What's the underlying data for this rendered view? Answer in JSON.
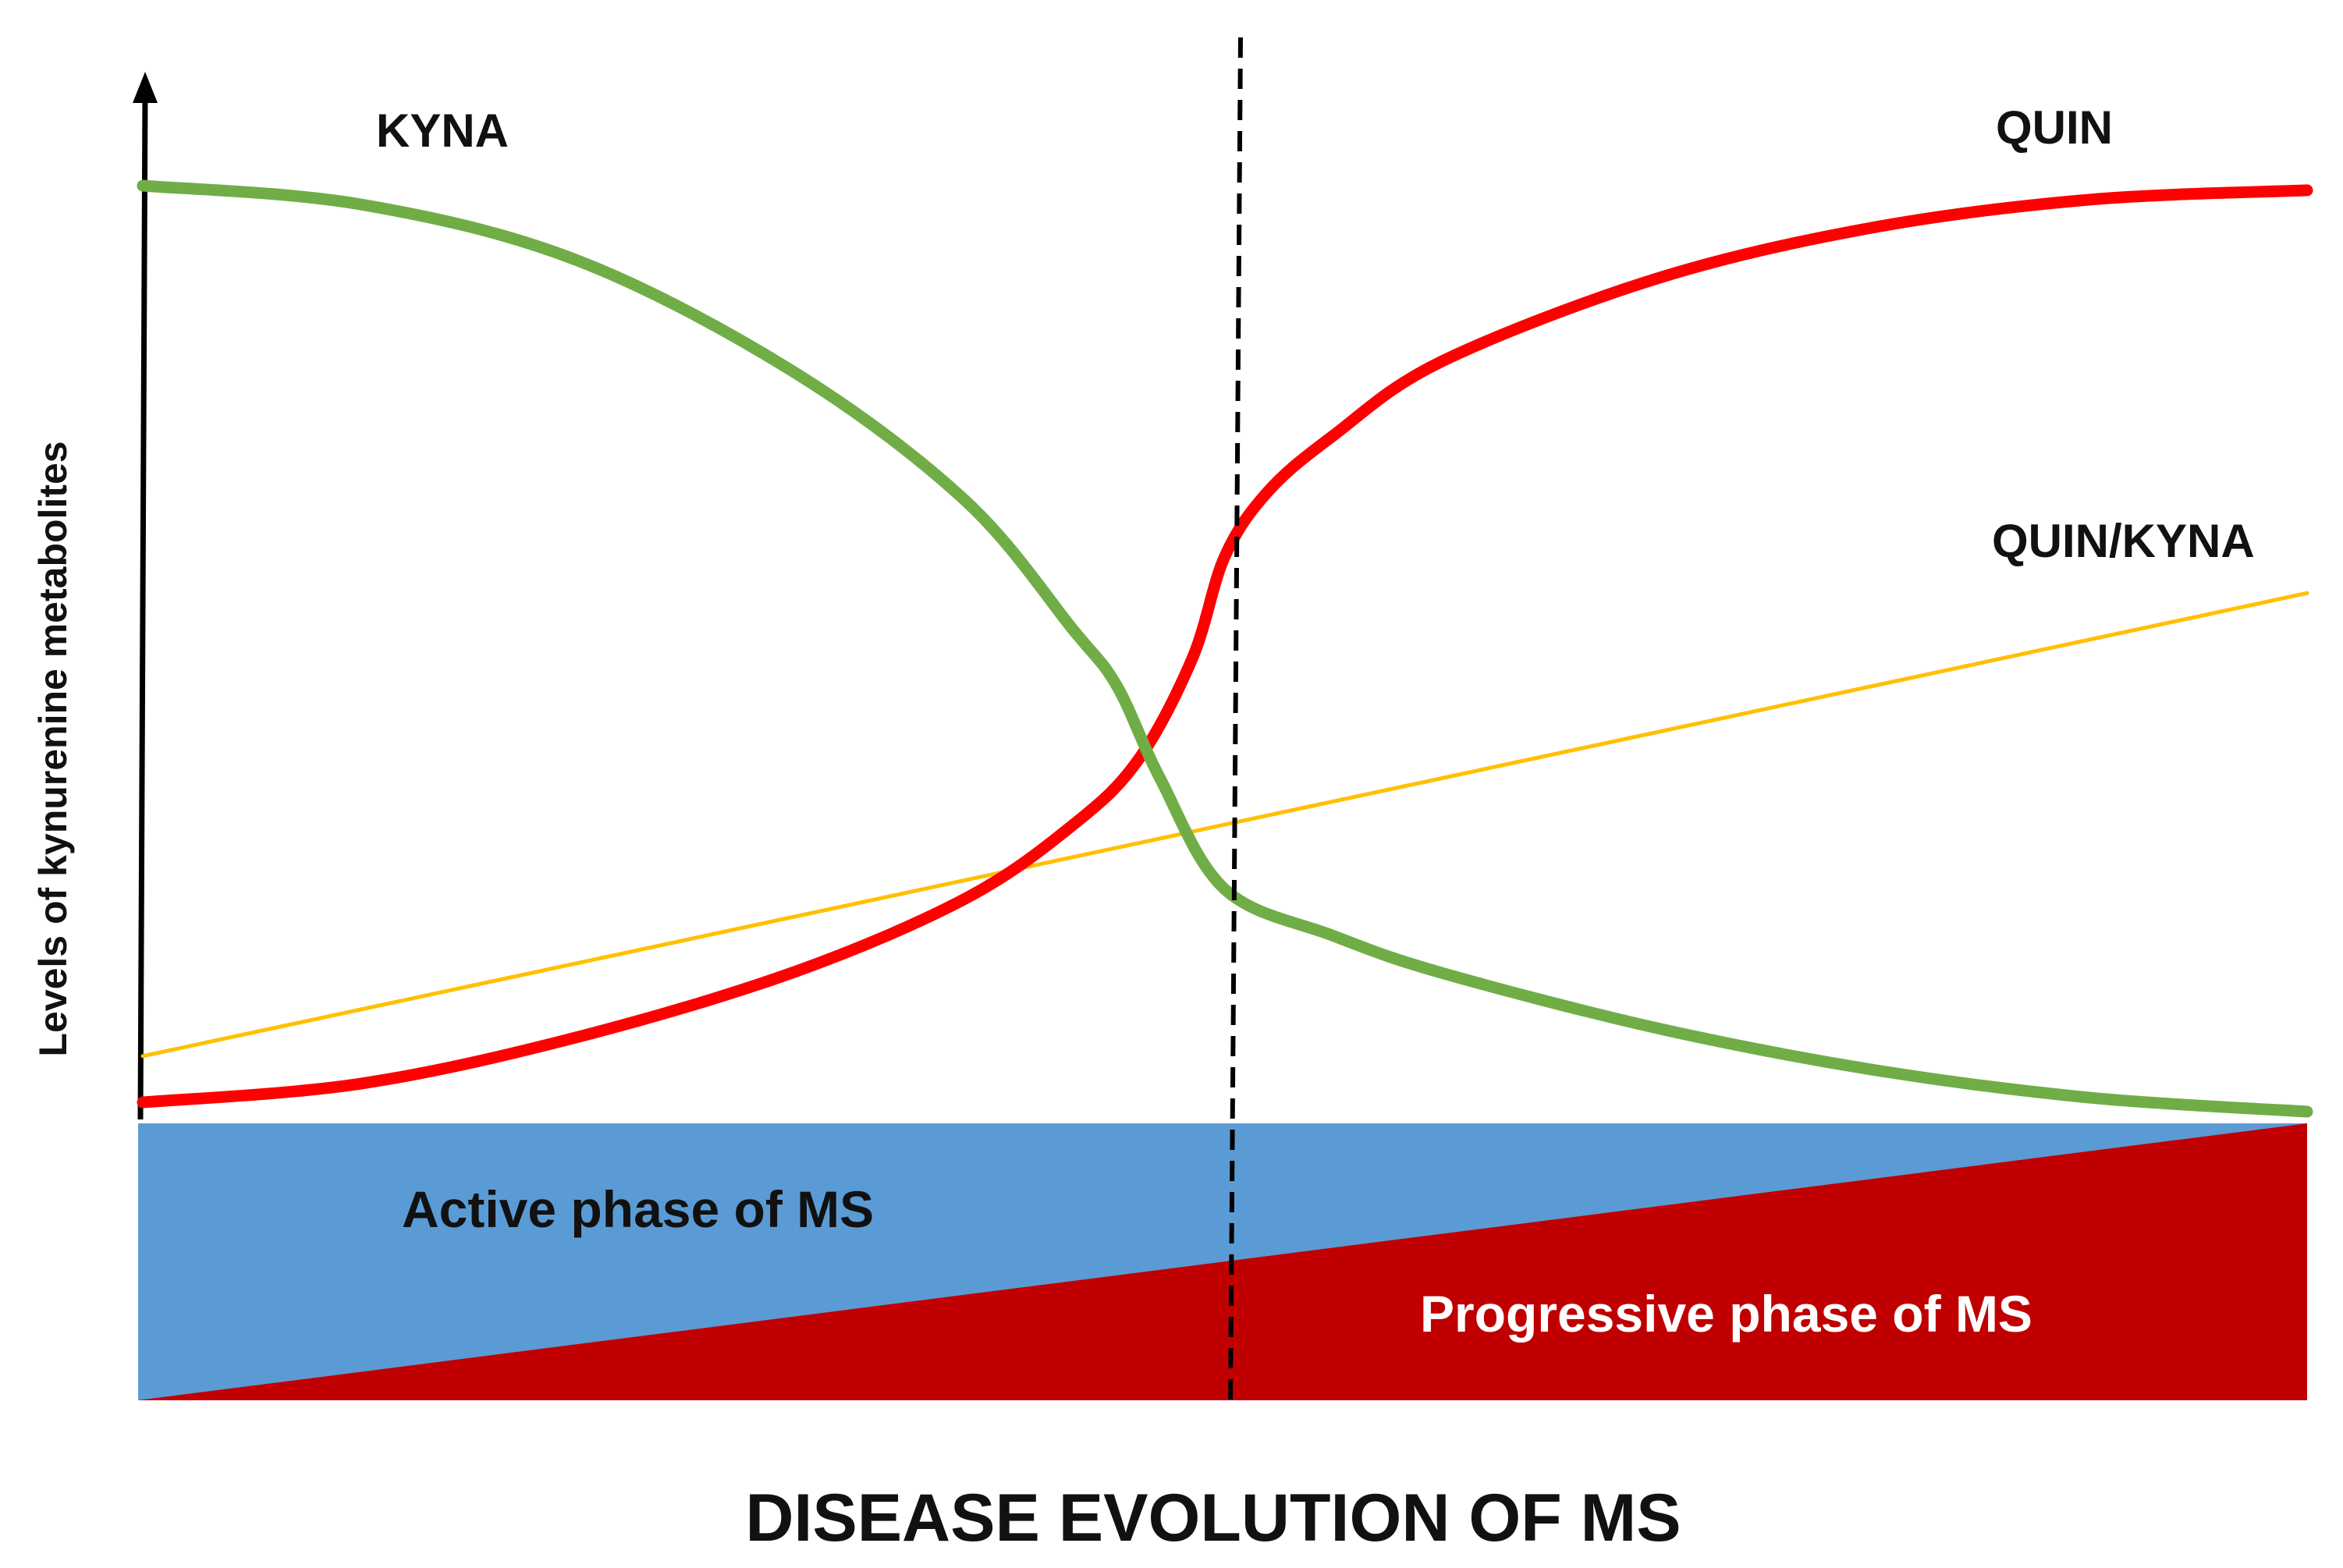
{
  "chart_data": {
    "type": "line",
    "title": "",
    "xlabel": "DISEASE EVOLUTION OF MS",
    "ylabel": "Levels of kynurenine metabolites",
    "xlim": [
      0,
      100
    ],
    "ylim": [
      0,
      100
    ],
    "divider_x": 50,
    "series": [
      {
        "name": "KYNA",
        "color": "#70ad47",
        "x": [
          0,
          10,
          20,
          30,
          38,
          43,
          45,
          47,
          50,
          55,
          60,
          70,
          80,
          90,
          100
        ],
        "y": [
          100,
          98,
          92,
          80,
          66,
          52,
          46,
          36,
          24,
          19,
          15,
          9,
          4.5,
          1.5,
          0
        ]
      },
      {
        "name": "QUIN",
        "color": "#ff0000",
        "x": [
          0,
          10,
          20,
          30,
          38,
          43,
          46,
          48.5,
          50,
          52,
          55,
          60,
          70,
          80,
          90,
          100
        ],
        "y": [
          1,
          3,
          8,
          15,
          23,
          31,
          38,
          49,
          60,
          67,
          73,
          81,
          90,
          95.5,
          98.5,
          99.5
        ]
      },
      {
        "name": "QUIN/KYNA",
        "color": "#ffc000",
        "x": [
          0,
          100
        ],
        "y": [
          6,
          56
        ]
      }
    ],
    "legend": [
      {
        "name": "KYNA",
        "position": "top-left"
      },
      {
        "name": "QUIN",
        "position": "top-right"
      },
      {
        "name": "QUIN/KYNA",
        "position": "right"
      }
    ],
    "phases": {
      "active": {
        "label": "Active phase of MS",
        "color": "#5b9bd5"
      },
      "progressive": {
        "label": "Progressive phase of MS",
        "color": "#c00000"
      }
    }
  }
}
